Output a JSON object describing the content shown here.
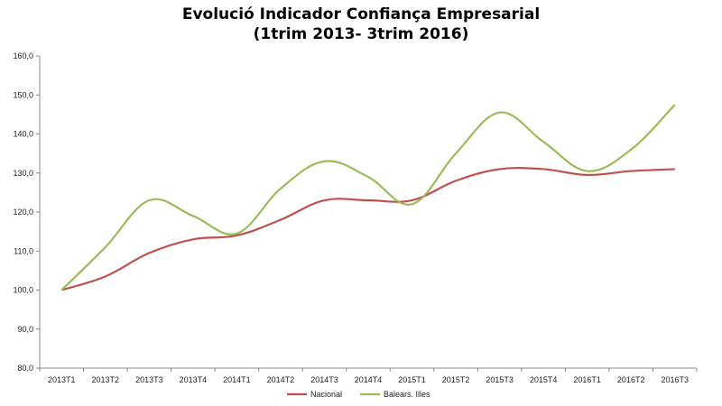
{
  "chart_data": {
    "type": "line",
    "title": "Evolució Indicador Confiança Empresarial",
    "subtitle": "(1trim 2013- 3trim 2016)",
    "xlabel": "",
    "ylabel": "",
    "ylim": [
      80,
      160
    ],
    "y_ticks": [
      "80,0",
      "90,0",
      "100,0",
      "110,0",
      "120,0",
      "130,0",
      "140,0",
      "150,0",
      "160,0"
    ],
    "categories": [
      "2013T1",
      "2013T2",
      "2013T3",
      "2013T4",
      "2014T1",
      "2014T2",
      "2014T3",
      "2014T4",
      "2015T1",
      "2015T2",
      "2015T3",
      "2015T4",
      "2016T1",
      "2016T2",
      "2016T3"
    ],
    "series": [
      {
        "name": "Nacional",
        "color": "#c0504d",
        "values": [
          100.0,
          103.5,
          109.5,
          113.0,
          114.0,
          118.0,
          123.0,
          123.0,
          123.0,
          128.0,
          131.0,
          131.0,
          129.5,
          130.5,
          131.0
        ]
      },
      {
        "name": "Balears. Illes",
        "color": "#9bbb59",
        "values": [
          100.0,
          111.0,
          123.0,
          119.0,
          114.5,
          126.0,
          133.0,
          129.0,
          122.0,
          135.0,
          145.5,
          138.0,
          130.5,
          136.0,
          147.5
        ]
      }
    ],
    "grid": false,
    "legend_position": "bottom"
  }
}
